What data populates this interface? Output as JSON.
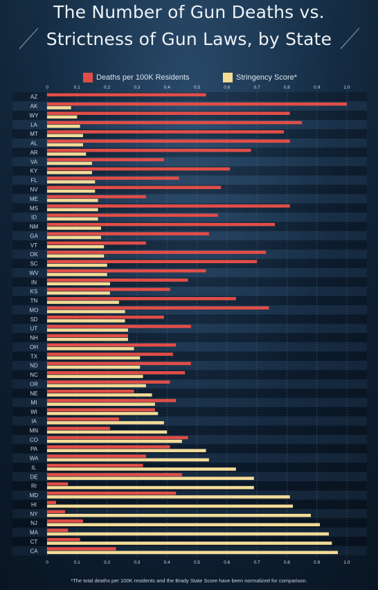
{
  "title_line1": "The Number of Gun Deaths vs.",
  "title_line2": "Strictness of Gun Laws, by State",
  "footnote": "*The total deaths per 100K residents and the Brady State Score have been normalized for comparison.",
  "colors": {
    "deaths": "#e04e48",
    "stringency": "#f3dc98",
    "grid": "#56708a",
    "label": "#cfd9e3"
  },
  "chart_data": {
    "type": "bar",
    "orientation": "horizontal",
    "xlim": [
      0,
      1
    ],
    "x_ticks_top": [
      "0",
      "0.1",
      "0.2",
      "0.3",
      "0.4",
      "0.5",
      "0.6",
      "0.7",
      "0.8",
      "0.9",
      "1.0"
    ],
    "x_ticks_bottom": [
      "0",
      "0.1",
      "0.2",
      "0.3",
      "0.4",
      "0.5",
      "0.6",
      "0.7",
      "0.8",
      "0.9",
      "1.0"
    ],
    "legend": {
      "placement": "top",
      "entries": [
        "Deaths per 100K Residents",
        "Stringency Score*"
      ]
    },
    "categories": [
      "AZ",
      "AK",
      "WY",
      "LA",
      "MT",
      "AL",
      "AR",
      "VA",
      "KY",
      "FL",
      "NV",
      "ME",
      "MS",
      "ID",
      "NM",
      "GA",
      "VT",
      "OK",
      "SC",
      "WV",
      "IN",
      "KS",
      "TN",
      "MO",
      "SD",
      "UT",
      "NH",
      "OH",
      "TX",
      "ND",
      "NC",
      "OR",
      "NE",
      "MI",
      "WI",
      "IA",
      "MN",
      "CO",
      "PA",
      "WA",
      "IL",
      "DE",
      "RI",
      "MD",
      "HI",
      "NY",
      "NJ",
      "MA",
      "CT",
      "CA"
    ],
    "series": [
      {
        "name": "Deaths per 100K Residents",
        "values": [
          0.53,
          1.0,
          0.81,
          0.85,
          0.79,
          0.81,
          0.68,
          0.39,
          0.61,
          0.44,
          0.58,
          0.33,
          0.81,
          0.57,
          0.76,
          0.54,
          0.33,
          0.73,
          0.7,
          0.53,
          0.47,
          0.41,
          0.63,
          0.74,
          0.39,
          0.48,
          0.27,
          0.43,
          0.42,
          0.48,
          0.46,
          0.41,
          0.29,
          0.43,
          0.36,
          0.24,
          0.21,
          0.47,
          0.41,
          0.33,
          0.32,
          0.45,
          0.07,
          0.43,
          0.03,
          0.06,
          0.12,
          0.07,
          0.11,
          0.23
        ]
      },
      {
        "name": "Stringency Score*",
        "values": [
          0.0,
          0.08,
          0.1,
          0.11,
          0.12,
          0.12,
          0.13,
          0.15,
          0.15,
          0.16,
          0.16,
          0.17,
          0.17,
          0.17,
          0.18,
          0.18,
          0.19,
          0.19,
          0.2,
          0.2,
          0.21,
          0.21,
          0.24,
          0.26,
          0.26,
          0.27,
          0.27,
          0.29,
          0.31,
          0.31,
          0.32,
          0.33,
          0.35,
          0.36,
          0.37,
          0.39,
          0.4,
          0.45,
          0.53,
          0.54,
          0.63,
          0.69,
          0.69,
          0.81,
          0.82,
          0.88,
          0.91,
          0.94,
          0.95,
          0.97
        ]
      }
    ]
  }
}
